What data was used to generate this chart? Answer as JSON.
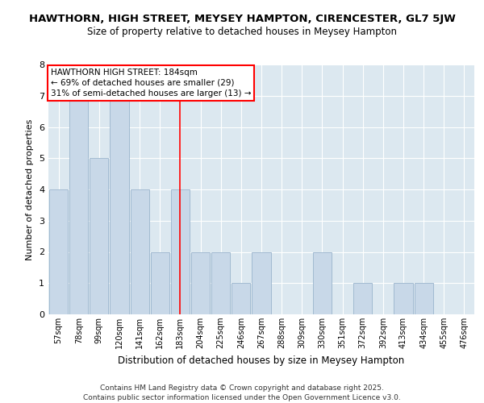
{
  "title": "HAWTHORN, HIGH STREET, MEYSEY HAMPTON, CIRENCESTER, GL7 5JW",
  "subtitle": "Size of property relative to detached houses in Meysey Hampton",
  "xlabel": "Distribution of detached houses by size in Meysey Hampton",
  "ylabel": "Number of detached properties",
  "categories": [
    "57sqm",
    "78sqm",
    "99sqm",
    "120sqm",
    "141sqm",
    "162sqm",
    "183sqm",
    "204sqm",
    "225sqm",
    "246sqm",
    "267sqm",
    "288sqm",
    "309sqm",
    "330sqm",
    "351sqm",
    "372sqm",
    "392sqm",
    "413sqm",
    "434sqm",
    "455sqm",
    "476sqm"
  ],
  "values": [
    4,
    7,
    5,
    7,
    4,
    2,
    4,
    2,
    2,
    1,
    2,
    0,
    0,
    2,
    0,
    1,
    0,
    1,
    1,
    0,
    0
  ],
  "bar_color": "#c8d8e8",
  "bar_edge_color": "#9ab4cc",
  "red_line_x": 6,
  "annotation_text": "HAWTHORN HIGH STREET: 184sqm\n← 69% of detached houses are smaller (29)\n31% of semi-detached houses are larger (13) →",
  "annotation_box_color": "white",
  "annotation_box_edge": "red",
  "vline_color": "red",
  "ylim": [
    0,
    8
  ],
  "yticks": [
    0,
    1,
    2,
    3,
    4,
    5,
    6,
    7,
    8
  ],
  "background_color": "#dce8f0",
  "grid_color": "white",
  "title_fontsize": 9.5,
  "subtitle_fontsize": 8.5,
  "xlabel_fontsize": 8.5,
  "ylabel_fontsize": 8,
  "tick_fontsize": 7,
  "annot_fontsize": 7.5,
  "footer_text": "Contains HM Land Registry data © Crown copyright and database right 2025.\nContains public sector information licensed under the Open Government Licence v3.0.",
  "footer_fontsize": 6.5
}
